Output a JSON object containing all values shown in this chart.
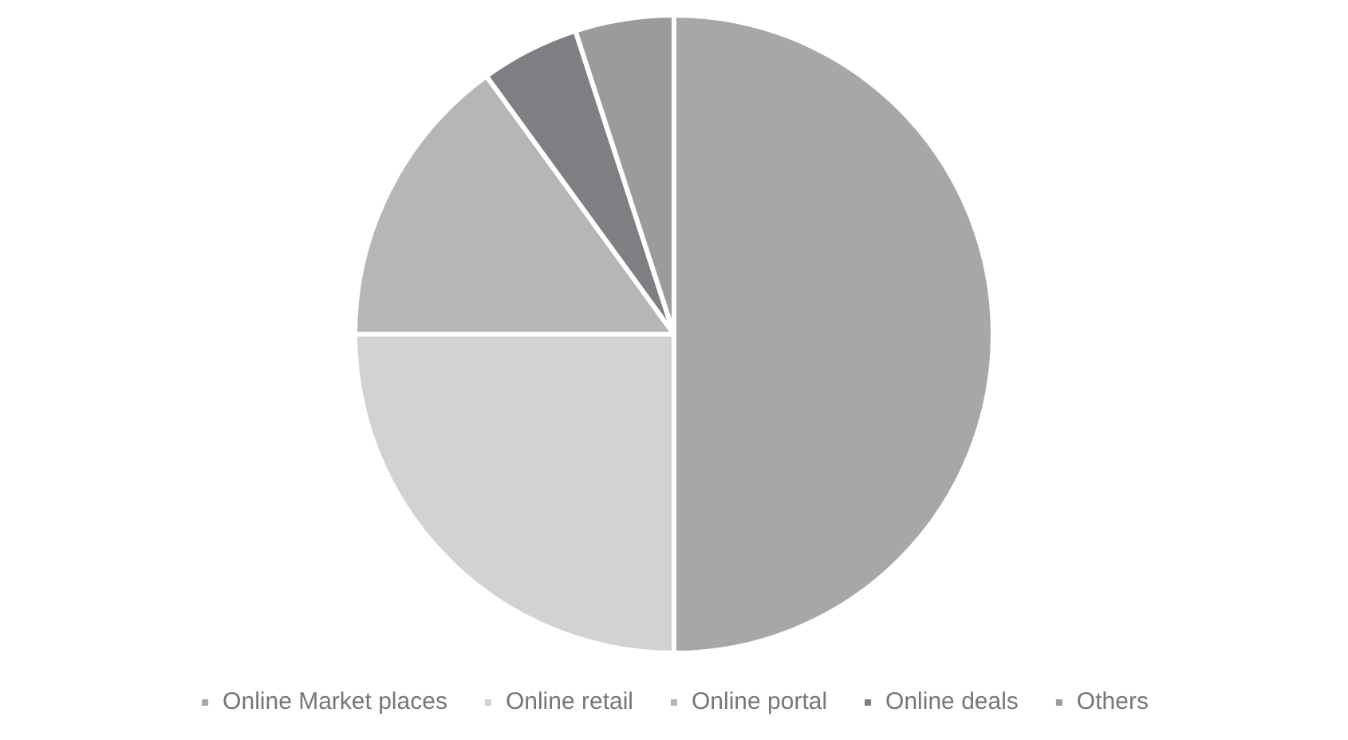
{
  "chart_data": {
    "type": "pie",
    "categories": [
      "Online Market places",
      "Online retail",
      "Online portal",
      "Online deals",
      "Others"
    ],
    "values": [
      50,
      25,
      15,
      5,
      5
    ],
    "colors": [
      "#a6a7a9",
      "#d1d2d4",
      "#b5b6b8",
      "#7e7f82",
      "#9a9b9d"
    ],
    "legend": "bottom"
  }
}
